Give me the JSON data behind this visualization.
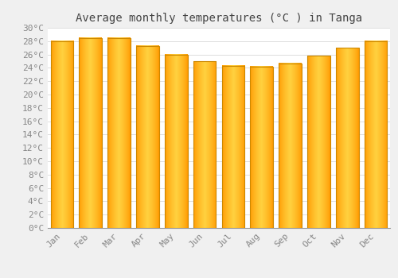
{
  "title": "Average monthly temperatures (°C ) in Tanga",
  "months": [
    "Jan",
    "Feb",
    "Mar",
    "Apr",
    "May",
    "Jun",
    "Jul",
    "Aug",
    "Sep",
    "Oct",
    "Nov",
    "Dec"
  ],
  "values": [
    28.0,
    28.5,
    28.5,
    27.3,
    26.0,
    25.0,
    24.3,
    24.2,
    24.7,
    25.8,
    27.0,
    28.0
  ],
  "bar_color": "#FFA500",
  "bar_gradient_center": "#FFD050",
  "bar_edge_color": "#CC8800",
  "background_color": "#F0F0F0",
  "plot_bg_color": "#FFFFFF",
  "grid_color": "#DDDDDD",
  "ylim": [
    0,
    30
  ],
  "title_fontsize": 10,
  "tick_fontsize": 8,
  "tick_color": "#888888",
  "title_color": "#444444"
}
